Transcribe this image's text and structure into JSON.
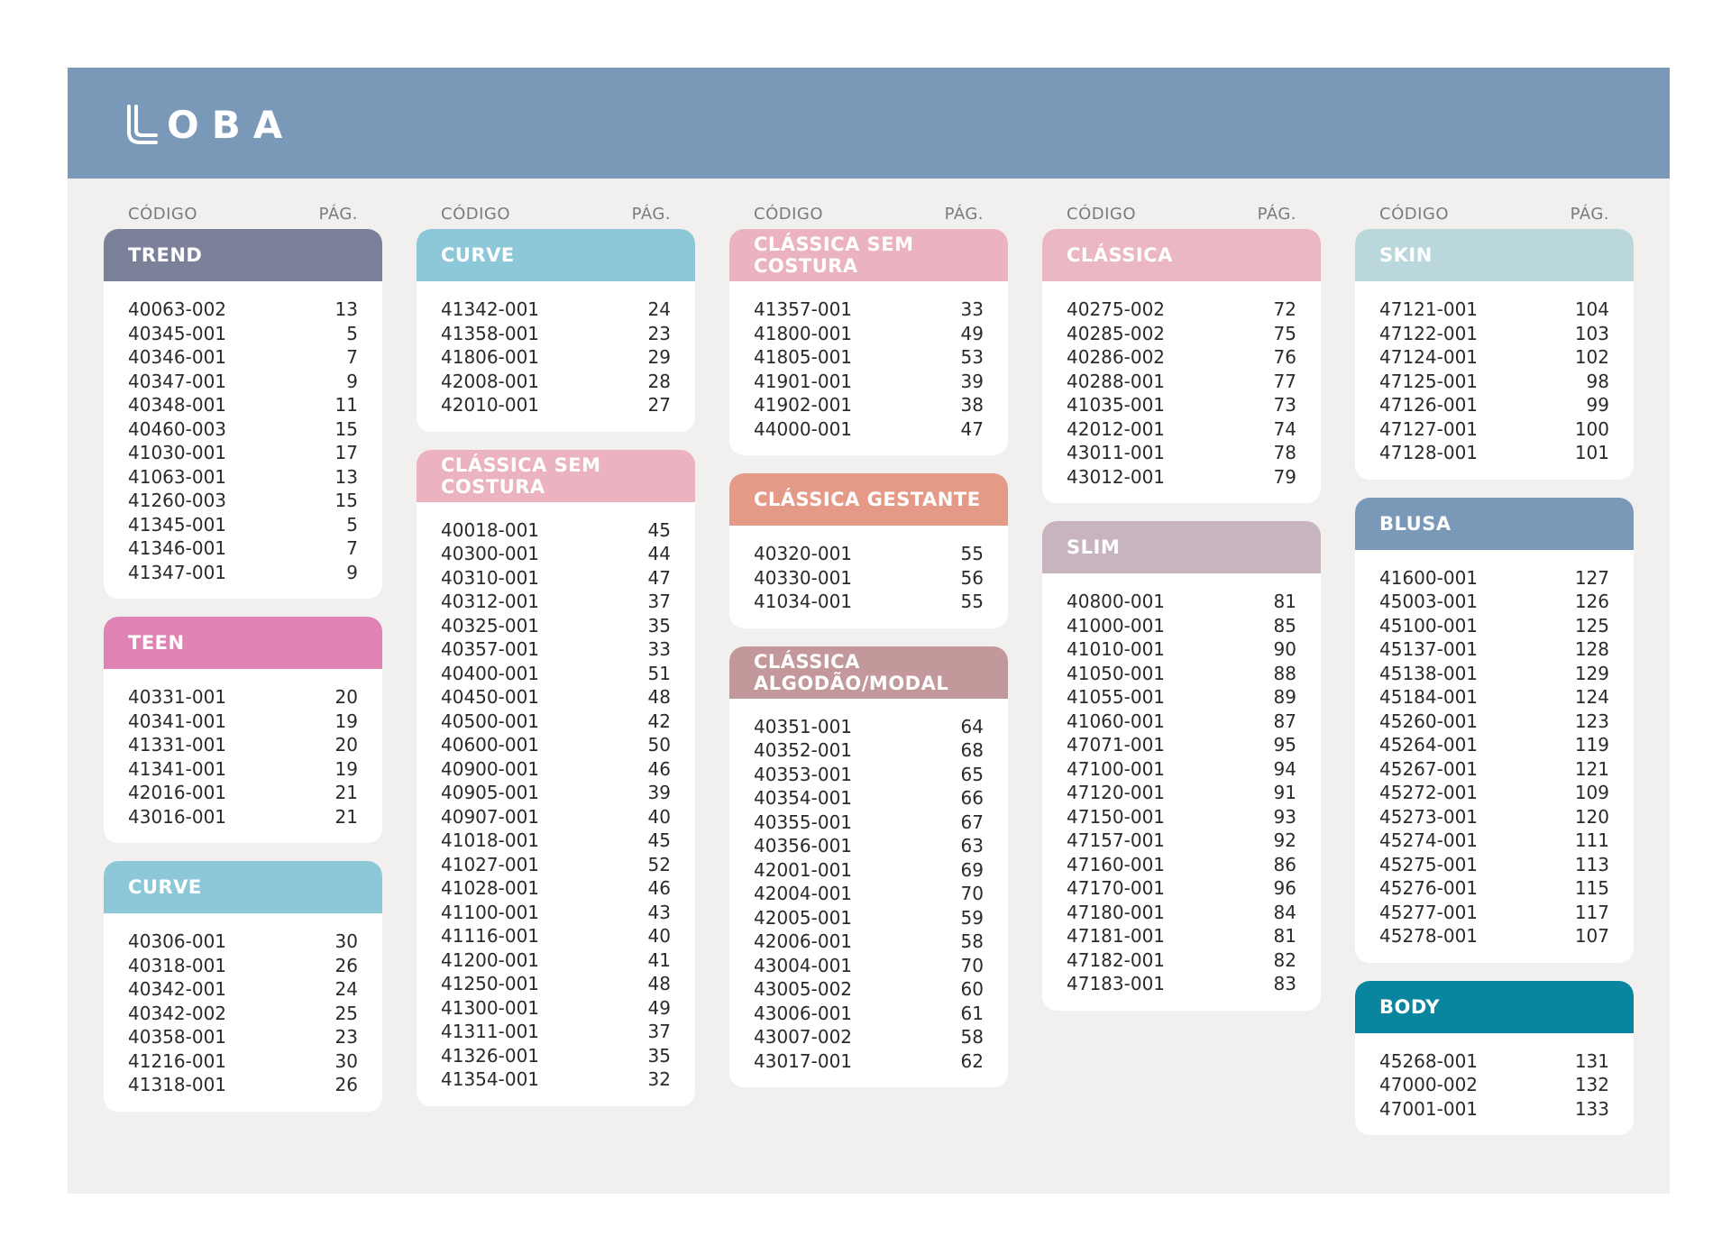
{
  "brand": {
    "name": "OBA",
    "logo": "loba-logo-mark"
  },
  "header_labels": {
    "code": "CÓDIGO",
    "page": "PÁG."
  },
  "colors": {
    "banner": "#7a98b7",
    "page_bg": "#f2efef",
    "trend": "#7a8199",
    "teen": "#df83b4",
    "curve": "#8dc8d8",
    "classica_sem_costura": "#eab3bf",
    "classica_gestante": "#e49a86",
    "classica_algodao_modal": "#c2989b",
    "classica": "#ebb7c2",
    "slim": "#c7b4be",
    "skin": "#bad8dc",
    "blusa": "#7a98b7",
    "body": "#0a85a0"
  },
  "columns": [
    {
      "cards": [
        {
          "title": "TREND",
          "color": "#7a8199",
          "items": [
            {
              "code": "40063-002",
              "page": "13"
            },
            {
              "code": "40345-001",
              "page": "5"
            },
            {
              "code": "40346-001",
              "page": "7"
            },
            {
              "code": "40347-001",
              "page": "9"
            },
            {
              "code": "40348-001",
              "page": "11"
            },
            {
              "code": "40460-003",
              "page": "15"
            },
            {
              "code": "41030-001",
              "page": "17"
            },
            {
              "code": "41063-001",
              "page": "13"
            },
            {
              "code": "41260-003",
              "page": "15"
            },
            {
              "code": "41345-001",
              "page": "5"
            },
            {
              "code": "41346-001",
              "page": "7"
            },
            {
              "code": "41347-001",
              "page": "9"
            }
          ]
        },
        {
          "title": "TEEN",
          "color": "#df83b4",
          "items": [
            {
              "code": "40331-001",
              "page": "20"
            },
            {
              "code": "40341-001",
              "page": "19"
            },
            {
              "code": "41331-001",
              "page": "20"
            },
            {
              "code": "41341-001",
              "page": "19"
            },
            {
              "code": "42016-001",
              "page": "21"
            },
            {
              "code": "43016-001",
              "page": "21"
            }
          ]
        },
        {
          "title": "CURVE",
          "color": "#8dc8d8",
          "items": [
            {
              "code": "40306-001",
              "page": "30"
            },
            {
              "code": "40318-001",
              "page": "26"
            },
            {
              "code": "40342-001",
              "page": "24"
            },
            {
              "code": "40342-002",
              "page": "25"
            },
            {
              "code": "40358-001",
              "page": "23"
            },
            {
              "code": "41216-001",
              "page": "30"
            },
            {
              "code": "41318-001",
              "page": "26"
            }
          ]
        }
      ]
    },
    {
      "cards": [
        {
          "title": "CURVE",
          "color": "#8dc8d8",
          "items": [
            {
              "code": "41342-001",
              "page": "24"
            },
            {
              "code": "41358-001",
              "page": "23"
            },
            {
              "code": "41806-001",
              "page": "29"
            },
            {
              "code": "42008-001",
              "page": "28"
            },
            {
              "code": "42010-001",
              "page": "27"
            }
          ]
        },
        {
          "title": "CLÁSSICA SEM COSTURA",
          "color": "#eab3bf",
          "items": [
            {
              "code": "40018-001",
              "page": "45"
            },
            {
              "code": "40300-001",
              "page": "44"
            },
            {
              "code": "40310-001",
              "page": "47"
            },
            {
              "code": "40312-001",
              "page": "37"
            },
            {
              "code": "40325-001",
              "page": "35"
            },
            {
              "code": "40357-001",
              "page": "33"
            },
            {
              "code": "40400-001",
              "page": "51"
            },
            {
              "code": "40450-001",
              "page": "48"
            },
            {
              "code": "40500-001",
              "page": "42"
            },
            {
              "code": "40600-001",
              "page": "50"
            },
            {
              "code": "40900-001",
              "page": "46"
            },
            {
              "code": "40905-001",
              "page": "39"
            },
            {
              "code": "40907-001",
              "page": "40"
            },
            {
              "code": "41018-001",
              "page": "45"
            },
            {
              "code": "41027-001",
              "page": "52"
            },
            {
              "code": "41028-001",
              "page": "46"
            },
            {
              "code": "41100-001",
              "page": "43"
            },
            {
              "code": "41116-001",
              "page": "40"
            },
            {
              "code": "41200-001",
              "page": "41"
            },
            {
              "code": "41250-001",
              "page": "48"
            },
            {
              "code": "41300-001",
              "page": "49"
            },
            {
              "code": "41311-001",
              "page": "37"
            },
            {
              "code": "41326-001",
              "page": "35"
            },
            {
              "code": "41354-001",
              "page": "32"
            }
          ]
        }
      ]
    },
    {
      "cards": [
        {
          "title": "CLÁSSICA SEM COSTURA",
          "color": "#eab3bf",
          "items": [
            {
              "code": "41357-001",
              "page": "33"
            },
            {
              "code": "41800-001",
              "page": "49"
            },
            {
              "code": "41805-001",
              "page": "53"
            },
            {
              "code": "41901-001",
              "page": "39"
            },
            {
              "code": "41902-001",
              "page": "38"
            },
            {
              "code": "44000-001",
              "page": "47"
            }
          ]
        },
        {
          "title": "CLÁSSICA GESTANTE",
          "color": "#e49a86",
          "items": [
            {
              "code": "40320-001",
              "page": "55"
            },
            {
              "code": "40330-001",
              "page": "56"
            },
            {
              "code": "41034-001",
              "page": "55"
            }
          ]
        },
        {
          "title": "CLÁSSICA ALGODÃO/MODAL",
          "color": "#c2989b",
          "items": [
            {
              "code": "40351-001",
              "page": "64"
            },
            {
              "code": "40352-001",
              "page": "68"
            },
            {
              "code": "40353-001",
              "page": "65"
            },
            {
              "code": "40354-001",
              "page": "66"
            },
            {
              "code": "40355-001",
              "page": "67"
            },
            {
              "code": "40356-001",
              "page": "63"
            },
            {
              "code": "42001-001",
              "page": "69"
            },
            {
              "code": "42004-001",
              "page": "70"
            },
            {
              "code": "42005-001",
              "page": "59"
            },
            {
              "code": "42006-001",
              "page": "58"
            },
            {
              "code": "43004-001",
              "page": "70"
            },
            {
              "code": "43005-002",
              "page": "60"
            },
            {
              "code": "43006-001",
              "page": "61"
            },
            {
              "code": "43007-002",
              "page": "58"
            },
            {
              "code": "43017-001",
              "page": "62"
            }
          ]
        }
      ]
    },
    {
      "cards": [
        {
          "title": "CLÁSSICA",
          "color": "#ebb7c2",
          "items": [
            {
              "code": "40275-002",
              "page": "72"
            },
            {
              "code": "40285-002",
              "page": "75"
            },
            {
              "code": "40286-002",
              "page": "76"
            },
            {
              "code": "40288-001",
              "page": "77"
            },
            {
              "code": "41035-001",
              "page": "73"
            },
            {
              "code": "42012-001",
              "page": "74"
            },
            {
              "code": "43011-001",
              "page": "78"
            },
            {
              "code": "43012-001",
              "page": "79"
            }
          ]
        },
        {
          "title": "SLIM",
          "color": "#c7b4be",
          "items": [
            {
              "code": "40800-001",
              "page": "81"
            },
            {
              "code": "41000-001",
              "page": "85"
            },
            {
              "code": "41010-001",
              "page": "90"
            },
            {
              "code": "41050-001",
              "page": "88"
            },
            {
              "code": "41055-001",
              "page": "89"
            },
            {
              "code": "41060-001",
              "page": "87"
            },
            {
              "code": "47071-001",
              "page": "95"
            },
            {
              "code": "47100-001",
              "page": "94"
            },
            {
              "code": "47120-001",
              "page": "91"
            },
            {
              "code": "47150-001",
              "page": "93"
            },
            {
              "code": "47157-001",
              "page": "92"
            },
            {
              "code": "47160-001",
              "page": "86"
            },
            {
              "code": "47170-001",
              "page": "96"
            },
            {
              "code": "47180-001",
              "page": "84"
            },
            {
              "code": "47181-001",
              "page": "81"
            },
            {
              "code": "47182-001",
              "page": "82"
            },
            {
              "code": "47183-001",
              "page": "83"
            }
          ]
        }
      ]
    },
    {
      "cards": [
        {
          "title": "SKIN",
          "color": "#bad8dc",
          "items": [
            {
              "code": "47121-001",
              "page": "104"
            },
            {
              "code": "47122-001",
              "page": "103"
            },
            {
              "code": "47124-001",
              "page": "102"
            },
            {
              "code": "47125-001",
              "page": "98"
            },
            {
              "code": "47126-001",
              "page": "99"
            },
            {
              "code": "47127-001",
              "page": "100"
            },
            {
              "code": "47128-001",
              "page": "101"
            }
          ]
        },
        {
          "title": "BLUSA",
          "color": "#7a98b7",
          "items": [
            {
              "code": "41600-001",
              "page": "127"
            },
            {
              "code": "45003-001",
              "page": "126"
            },
            {
              "code": "45100-001",
              "page": "125"
            },
            {
              "code": "45137-001",
              "page": "128"
            },
            {
              "code": "45138-001",
              "page": "129"
            },
            {
              "code": "45184-001",
              "page": "124"
            },
            {
              "code": "45260-001",
              "page": "123"
            },
            {
              "code": "45264-001",
              "page": "119"
            },
            {
              "code": "45267-001",
              "page": "121"
            },
            {
              "code": "45272-001",
              "page": "109"
            },
            {
              "code": "45273-001",
              "page": "120"
            },
            {
              "code": "45274-001",
              "page": "111"
            },
            {
              "code": "45275-001",
              "page": "113"
            },
            {
              "code": "45276-001",
              "page": "115"
            },
            {
              "code": "45277-001",
              "page": "117"
            },
            {
              "code": "45278-001",
              "page": "107"
            }
          ]
        },
        {
          "title": "BODY",
          "color": "#0a85a0",
          "items": [
            {
              "code": "45268-001",
              "page": "131"
            },
            {
              "code": "47000-002",
              "page": "132"
            },
            {
              "code": "47001-001",
              "page": "133"
            }
          ]
        }
      ]
    }
  ]
}
